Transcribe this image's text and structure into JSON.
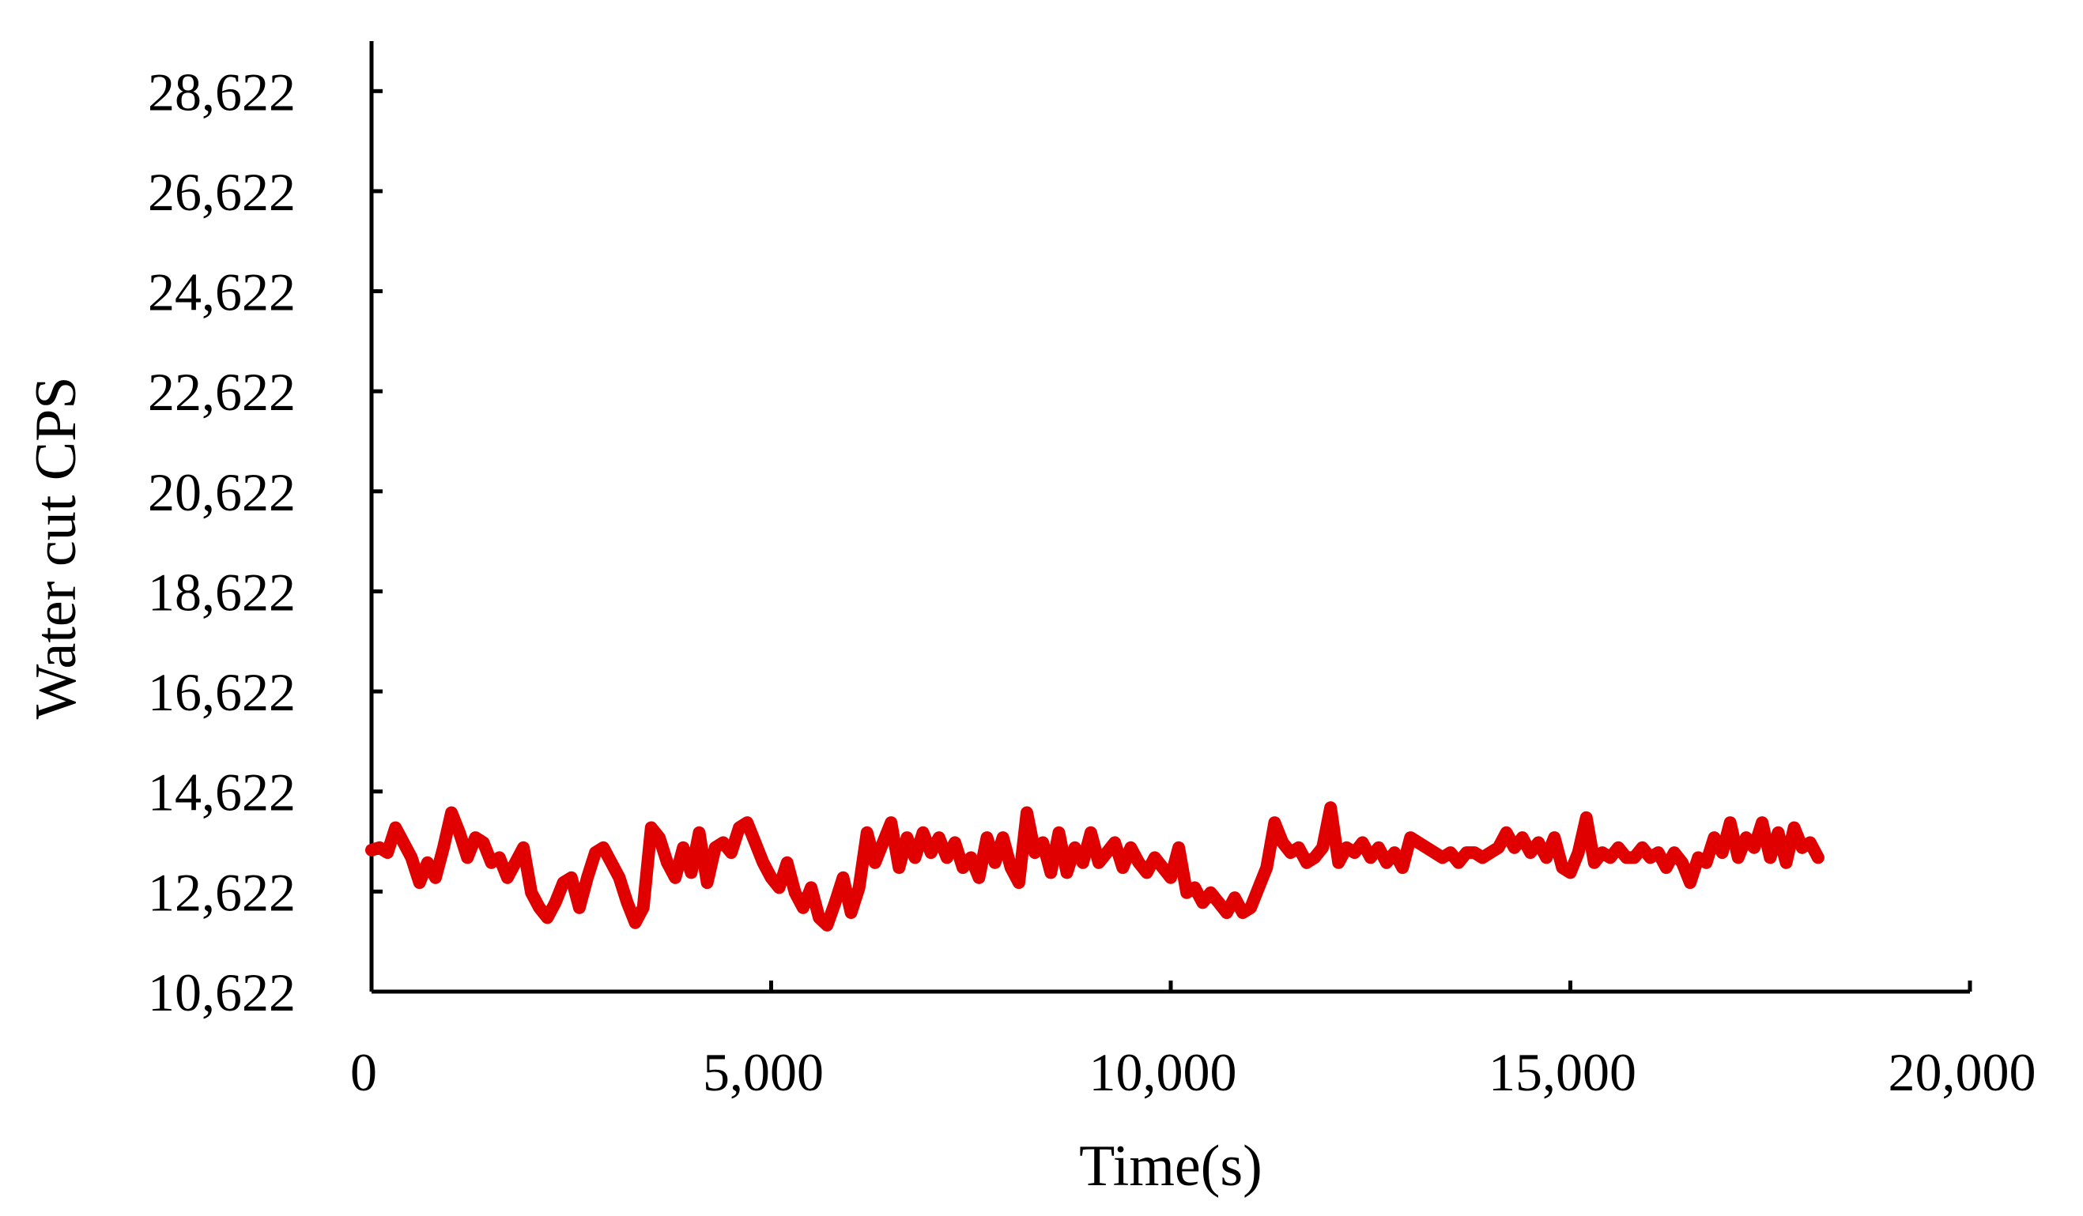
{
  "chart_data": {
    "type": "line",
    "title": "",
    "xlabel": "Time(s)",
    "ylabel": "Water cut CPS",
    "xlim": [
      0,
      20000
    ],
    "ylim": [
      10622,
      29622
    ],
    "xticks": [
      0,
      5000,
      10000,
      15000,
      20000
    ],
    "xtick_labels": [
      "0",
      "5,000",
      "10,000",
      "15,000",
      "20,000"
    ],
    "yticks": [
      10622,
      12622,
      14622,
      16622,
      18622,
      20622,
      22622,
      24622,
      26622,
      28622
    ],
    "ytick_labels": [
      "10,622",
      "12,622",
      "14,622",
      "16,622",
      "18,622",
      "20,622",
      "22,622",
      "24,622",
      "26,622",
      "28,622"
    ],
    "grid": false,
    "legend": "none",
    "series": [
      {
        "color": "#e00000",
        "points": [
          [
            0,
            13450
          ],
          [
            100,
            13500
          ],
          [
            200,
            13400
          ],
          [
            300,
            13900
          ],
          [
            400,
            13600
          ],
          [
            500,
            13300
          ],
          [
            600,
            12800
          ],
          [
            700,
            13200
          ],
          [
            800,
            12900
          ],
          [
            900,
            13500
          ],
          [
            1000,
            14200
          ],
          [
            1100,
            13800
          ],
          [
            1200,
            13300
          ],
          [
            1300,
            13700
          ],
          [
            1400,
            13600
          ],
          [
            1500,
            13200
          ],
          [
            1600,
            13300
          ],
          [
            1700,
            12900
          ],
          [
            1800,
            13200
          ],
          [
            1900,
            13500
          ],
          [
            2000,
            12600
          ],
          [
            2100,
            12300
          ],
          [
            2200,
            12100
          ],
          [
            2300,
            12400
          ],
          [
            2400,
            12800
          ],
          [
            2500,
            12900
          ],
          [
            2600,
            12300
          ],
          [
            2700,
            12900
          ],
          [
            2800,
            13400
          ],
          [
            2900,
            13500
          ],
          [
            3000,
            13200
          ],
          [
            3100,
            12900
          ],
          [
            3200,
            12400
          ],
          [
            3300,
            12000
          ],
          [
            3400,
            12300
          ],
          [
            3500,
            13900
          ],
          [
            3600,
            13700
          ],
          [
            3700,
            13200
          ],
          [
            3800,
            12900
          ],
          [
            3900,
            13500
          ],
          [
            4000,
            13000
          ],
          [
            4100,
            13800
          ],
          [
            4200,
            12800
          ],
          [
            4300,
            13500
          ],
          [
            4400,
            13600
          ],
          [
            4500,
            13400
          ],
          [
            4600,
            13900
          ],
          [
            4700,
            14000
          ],
          [
            4800,
            13600
          ],
          [
            4900,
            13200
          ],
          [
            5000,
            12900
          ],
          [
            5100,
            12700
          ],
          [
            5200,
            13200
          ],
          [
            5300,
            12600
          ],
          [
            5400,
            12300
          ],
          [
            5500,
            12700
          ],
          [
            5600,
            12100
          ],
          [
            5700,
            11950
          ],
          [
            5800,
            12400
          ],
          [
            5900,
            12900
          ],
          [
            6000,
            12200
          ],
          [
            6100,
            12700
          ],
          [
            6200,
            13800
          ],
          [
            6300,
            13200
          ],
          [
            6400,
            13600
          ],
          [
            6500,
            14000
          ],
          [
            6600,
            13100
          ],
          [
            6700,
            13700
          ],
          [
            6800,
            13300
          ],
          [
            6900,
            13800
          ],
          [
            7000,
            13400
          ],
          [
            7100,
            13700
          ],
          [
            7200,
            13300
          ],
          [
            7300,
            13600
          ],
          [
            7400,
            13100
          ],
          [
            7500,
            13300
          ],
          [
            7600,
            12900
          ],
          [
            7700,
            13700
          ],
          [
            7800,
            13200
          ],
          [
            7900,
            13700
          ],
          [
            8000,
            13100
          ],
          [
            8100,
            12800
          ],
          [
            8200,
            14200
          ],
          [
            8300,
            13400
          ],
          [
            8400,
            13600
          ],
          [
            8500,
            13000
          ],
          [
            8600,
            13800
          ],
          [
            8700,
            13000
          ],
          [
            8800,
            13500
          ],
          [
            8900,
            13200
          ],
          [
            9000,
            13800
          ],
          [
            9100,
            13200
          ],
          [
            9200,
            13400
          ],
          [
            9300,
            13600
          ],
          [
            9400,
            13100
          ],
          [
            9500,
            13500
          ],
          [
            9600,
            13200
          ],
          [
            9700,
            13000
          ],
          [
            9800,
            13300
          ],
          [
            9900,
            13100
          ],
          [
            10000,
            12900
          ],
          [
            10100,
            13500
          ],
          [
            10200,
            12600
          ],
          [
            10300,
            12700
          ],
          [
            10400,
            12400
          ],
          [
            10500,
            12600
          ],
          [
            10600,
            12400
          ],
          [
            10700,
            12200
          ],
          [
            10800,
            12500
          ],
          [
            10900,
            12200
          ],
          [
            11000,
            12300
          ],
          [
            11100,
            12700
          ],
          [
            11200,
            13100
          ],
          [
            11300,
            14000
          ],
          [
            11400,
            13600
          ],
          [
            11500,
            13400
          ],
          [
            11600,
            13500
          ],
          [
            11700,
            13200
          ],
          [
            11800,
            13300
          ],
          [
            11900,
            13500
          ],
          [
            12000,
            14300
          ],
          [
            12100,
            13200
          ],
          [
            12200,
            13500
          ],
          [
            12300,
            13400
          ],
          [
            12400,
            13600
          ],
          [
            12500,
            13300
          ],
          [
            12600,
            13500
          ],
          [
            12700,
            13200
          ],
          [
            12800,
            13400
          ],
          [
            12900,
            13100
          ],
          [
            13000,
            13700
          ],
          [
            13100,
            13600
          ],
          [
            13200,
            13500
          ],
          [
            13300,
            13400
          ],
          [
            13400,
            13300
          ],
          [
            13500,
            13400
          ],
          [
            13600,
            13200
          ],
          [
            13700,
            13400
          ],
          [
            13800,
            13400
          ],
          [
            13900,
            13300
          ],
          [
            14000,
            13400
          ],
          [
            14100,
            13500
          ],
          [
            14200,
            13800
          ],
          [
            14300,
            13500
          ],
          [
            14400,
            13700
          ],
          [
            14500,
            13400
          ],
          [
            14600,
            13600
          ],
          [
            14700,
            13300
          ],
          [
            14800,
            13700
          ],
          [
            14900,
            13100
          ],
          [
            15000,
            13000
          ],
          [
            15100,
            13400
          ],
          [
            15200,
            14100
          ],
          [
            15300,
            13200
          ],
          [
            15400,
            13400
          ],
          [
            15500,
            13300
          ],
          [
            15600,
            13500
          ],
          [
            15700,
            13300
          ],
          [
            15800,
            13300
          ],
          [
            15900,
            13500
          ],
          [
            16000,
            13300
          ],
          [
            16100,
            13400
          ],
          [
            16200,
            13100
          ],
          [
            16300,
            13400
          ],
          [
            16400,
            13200
          ],
          [
            16500,
            12800
          ],
          [
            16600,
            13300
          ],
          [
            16700,
            13200
          ],
          [
            16800,
            13700
          ],
          [
            16900,
            13400
          ],
          [
            17000,
            14000
          ],
          [
            17100,
            13300
          ],
          [
            17200,
            13700
          ],
          [
            17300,
            13500
          ],
          [
            17400,
            14000
          ],
          [
            17500,
            13300
          ],
          [
            17600,
            13800
          ],
          [
            17700,
            13200
          ],
          [
            17800,
            13900
          ],
          [
            17900,
            13500
          ],
          [
            18000,
            13600
          ],
          [
            18100,
            13300
          ]
        ]
      }
    ]
  }
}
